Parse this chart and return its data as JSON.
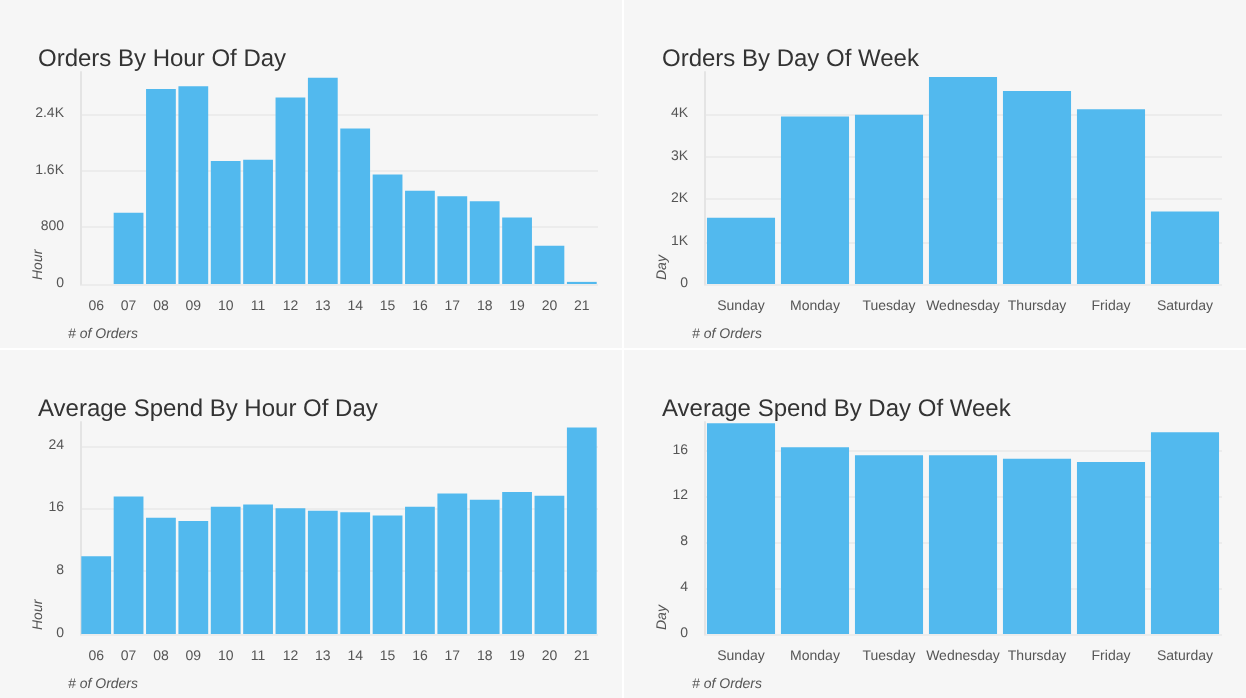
{
  "chart_data": [
    {
      "type": "bar",
      "title": "Orders By Hour Of Day",
      "xlabel": "# of Orders",
      "ylabel": "Hour",
      "categories": [
        "06",
        "07",
        "08",
        "09",
        "10",
        "11",
        "12",
        "13",
        "14",
        "15",
        "16",
        "17",
        "18",
        "19",
        "20",
        "21"
      ],
      "color": "#52b9ee",
      "values": [
        0,
        1010,
        2760,
        2800,
        1740,
        1760,
        2640,
        2920,
        2200,
        1550,
        1320,
        1240,
        1170,
        940,
        540,
        30
      ],
      "ylim": [
        0,
        3000
      ],
      "yticks": [
        0,
        800,
        {
          "value": 1600,
          "label": "1.6K"
        },
        {
          "value": 2400,
          "label": "2.4K"
        }
      ],
      "grid": "y"
    },
    {
      "type": "bar",
      "title": "Orders By Day Of Week",
      "xlabel": "# of Orders",
      "ylabel": "Day",
      "categories": [
        "Sunday",
        "Monday",
        "Tuesday",
        "Wednesday",
        "Thursday",
        "Friday",
        "Saturday"
      ],
      "color": "#52b9ee",
      "values": [
        1560,
        3950,
        3990,
        4880,
        4550,
        4120,
        1710
      ],
      "ylim": [
        0,
        5000
      ],
      "yticks": [
        0,
        {
          "value": 1000,
          "label": "1K"
        },
        {
          "value": 2000,
          "label": "2K"
        },
        {
          "value": 3000,
          "label": "3K"
        },
        {
          "value": 4000,
          "label": "4K"
        }
      ],
      "grid": "y"
    },
    {
      "type": "bar",
      "title": "Average Spend By Hour Of Day",
      "xlabel": "# of Orders",
      "ylabel": "Hour",
      "categories": [
        "06",
        "07",
        "08",
        "09",
        "10",
        "11",
        "12",
        "13",
        "14",
        "15",
        "16",
        "17",
        "18",
        "19",
        "20",
        "21"
      ],
      "color": "#52b9ee",
      "values": [
        9.9,
        17.5,
        14.8,
        14.4,
        16.2,
        16.5,
        16.0,
        15.7,
        15.5,
        15.1,
        16.2,
        17.9,
        17.1,
        18.1,
        17.6,
        26.3
      ],
      "ylim": [
        0,
        27
      ],
      "yticks": [
        0,
        8,
        16,
        24
      ],
      "grid": "y"
    },
    {
      "type": "bar",
      "title": "Average Spend By Day Of Week",
      "xlabel": "# of Orders",
      "ylabel": "Day",
      "categories": [
        "Sunday",
        "Monday",
        "Tuesday",
        "Wednesday",
        "Thursday",
        "Friday",
        "Saturday"
      ],
      "color": "#52b9ee",
      "values": [
        18.4,
        16.3,
        15.6,
        15.6,
        15.3,
        15.0,
        17.6
      ],
      "ylim": [
        0,
        18.5
      ],
      "yticks": [
        0,
        4,
        8,
        12,
        16
      ],
      "grid": "y"
    }
  ]
}
